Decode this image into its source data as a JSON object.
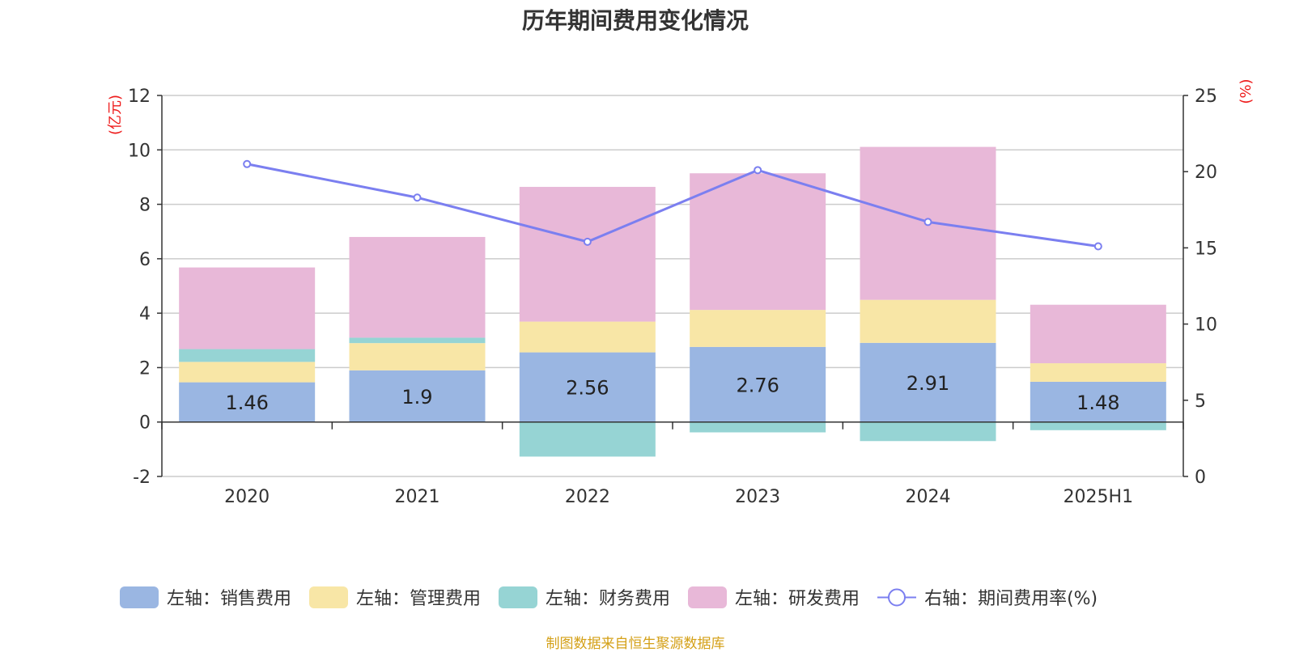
{
  "chart_data": {
    "type": "bar",
    "title": "历年期间费用变化情况",
    "categories": [
      "2020",
      "2021",
      "2022",
      "2023",
      "2024",
      "2025H1"
    ],
    "left_axis": {
      "unit": "(亿元)",
      "ylim": [
        -2,
        12
      ],
      "ticks": [
        "12",
        "10",
        "8",
        "6",
        "4",
        "2",
        "0",
        "-2"
      ]
    },
    "right_axis": {
      "unit": "(%)",
      "ylim": [
        0,
        25
      ],
      "ticks": [
        "25",
        "20",
        "15",
        "10",
        "5",
        "0"
      ]
    },
    "series": [
      {
        "name": "左轴：销售费用",
        "axis": "left",
        "type": "bar",
        "color": "#9ab6e2",
        "values": [
          1.46,
          1.9,
          2.56,
          2.76,
          2.91,
          1.48
        ],
        "labels": [
          "1.46",
          "1.9",
          "2.56",
          "2.76",
          "2.91",
          "1.48"
        ]
      },
      {
        "name": "左轴：管理费用",
        "axis": "left",
        "type": "bar",
        "color": "#f8e6a6",
        "values": [
          0.75,
          1.0,
          1.13,
          1.36,
          1.58,
          0.68
        ]
      },
      {
        "name": "左轴：财务费用",
        "axis": "left",
        "type": "bar",
        "color": "#96d4d4",
        "values": [
          0.47,
          0.2,
          -1.27,
          -0.38,
          -0.7,
          -0.3
        ]
      },
      {
        "name": "左轴：研发费用",
        "axis": "left",
        "type": "bar",
        "color": "#e8b8d8",
        "values": [
          3.0,
          3.7,
          4.95,
          5.02,
          5.62,
          2.15
        ]
      },
      {
        "name": "右轴：期间费用率(%)",
        "axis": "right",
        "type": "line",
        "color": "#7b7ff0",
        "values": [
          20.5,
          18.3,
          15.4,
          20.1,
          16.7,
          15.1
        ]
      }
    ],
    "grid": true,
    "legend_position": "bottom"
  },
  "source_note": "制图数据来自恒生聚源数据库"
}
